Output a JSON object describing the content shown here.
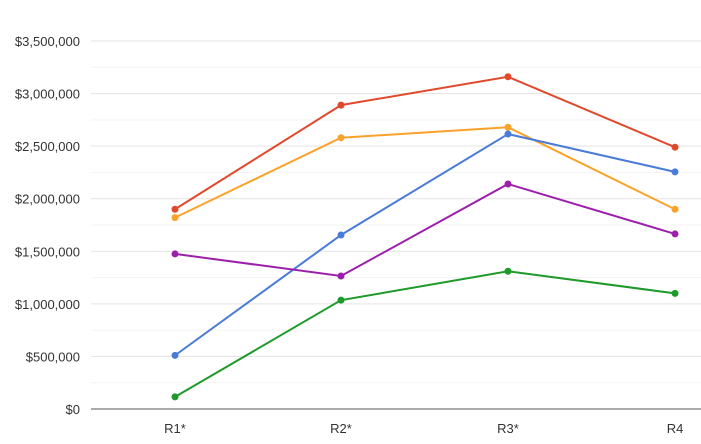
{
  "chart_data": {
    "type": "line",
    "categories": [
      "R1*",
      "R2*",
      "R3*",
      "R4"
    ],
    "ylim": [
      0,
      3500000
    ],
    "yticks": [
      0,
      500000,
      1000000,
      1500000,
      2000000,
      2500000,
      3000000,
      3500000
    ],
    "ytick_labels": [
      "$0",
      "$500,000",
      "$1,000,000",
      "$1,500,000",
      "$2,000,000",
      "$2,500,000",
      "$3,000,000",
      "$3,500,000"
    ],
    "grid": true,
    "series": [
      {
        "color": "#e0492b",
        "values": [
          1900000,
          2890000,
          3160000,
          2490000
        ]
      },
      {
        "color": "#fba22a",
        "values": [
          1820000,
          2580000,
          2680000,
          1900000
        ]
      },
      {
        "color": "#4a7bd8",
        "values": [
          510000,
          1655000,
          2615000,
          2255000
        ]
      },
      {
        "color": "#9c1fab",
        "values": [
          1475000,
          1265000,
          2140000,
          1665000
        ]
      },
      {
        "color": "#1e9a29",
        "values": [
          115000,
          1035000,
          1310000,
          1100000
        ]
      }
    ]
  }
}
